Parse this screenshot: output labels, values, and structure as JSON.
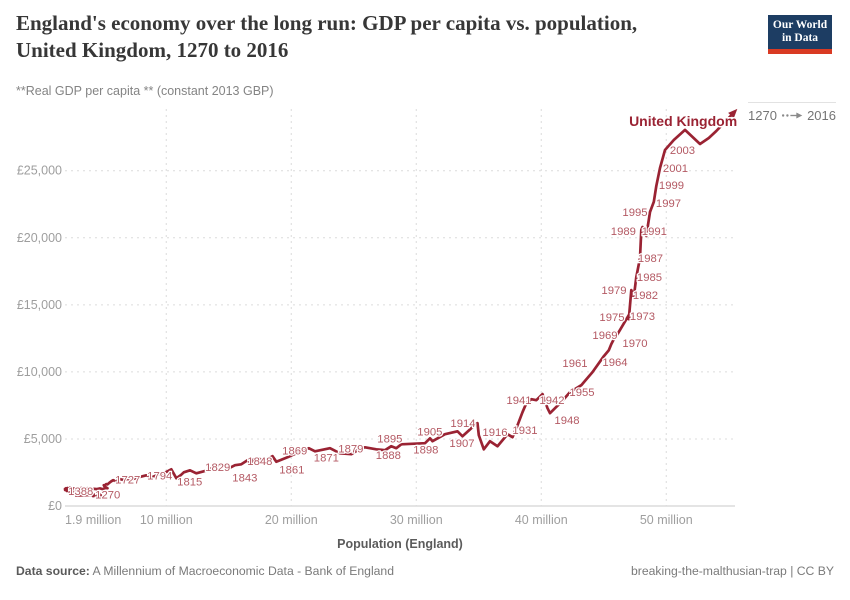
{
  "header": {
    "title_line1": "England's economy over the long run: GDP per capita vs. population,",
    "title_line2": "United Kingdom, 1270 to 2016",
    "subtitle": "**Real GDP per capita ** (constant 2013 GBP)",
    "logo": {
      "line1": "Our World",
      "line2": "in Data"
    }
  },
  "legend": {
    "start_year": "1270",
    "end_year": "2016"
  },
  "footer": {
    "datasource_label": "Data source:",
    "datasource_value": " A Millennium of Macroeconomic Data - Bank of England",
    "note_right": "breaking-the-malthusian-trap | CC BY"
  },
  "chart_data": {
    "type": "line",
    "subtype": "connected-scatter",
    "entity": "United Kingdom",
    "title": "England's economy over the long run: GDP per capita vs. population, United Kingdom, 1270 to 2016",
    "xlabel": "Population (England)",
    "ylabel": "**Real GDP per capita ** (constant 2013 GBP)",
    "x_domain": [
      1.9,
      55.5
    ],
    "y_domain": [
      0,
      29600
    ],
    "grid": true,
    "x_ticks": [
      {
        "v": 1.9,
        "label": "1.9 million",
        "gridline": false
      },
      {
        "v": 10,
        "label": "10 million",
        "gridline": true
      },
      {
        "v": 20,
        "label": "20 million",
        "gridline": true
      },
      {
        "v": 30,
        "label": "30 million",
        "gridline": true
      },
      {
        "v": 40,
        "label": "40 million",
        "gridline": true
      },
      {
        "v": 50,
        "label": "50 million",
        "gridline": true
      }
    ],
    "y_ticks": [
      {
        "v": 0,
        "label": "£0"
      },
      {
        "v": 5000,
        "label": "£5,000"
      },
      {
        "v": 10000,
        "label": "£10,000"
      },
      {
        "v": 15000,
        "label": "£15,000"
      },
      {
        "v": 20000,
        "label": "£20,000"
      },
      {
        "v": 25000,
        "label": "£25,000"
      }
    ],
    "colors": {
      "line": "#9a2333",
      "year_label": "#b45a64",
      "entity_label": "#9a2333",
      "gridline": "#dcdcdc",
      "axis_line": "#c9c9c9",
      "tick_label": "#9e9e9e"
    },
    "series_units": [
      "year",
      "population_millions",
      "gdp_per_capita_gbp"
    ],
    "series": [
      [
        1270,
        4.4,
        870
      ],
      [
        1280,
        4.55,
        790
      ],
      [
        1290,
        4.72,
        760
      ],
      [
        1300,
        4.78,
        720
      ],
      [
        1310,
        4.6,
        650
      ],
      [
        1316,
        4.45,
        600
      ],
      [
        1322,
        4.3,
        780
      ],
      [
        1327,
        4.15,
        740
      ],
      [
        1335,
        4.3,
        820
      ],
      [
        1342,
        4.55,
        800
      ],
      [
        1348,
        4.75,
        860
      ],
      [
        1352,
        2.78,
        780
      ],
      [
        1358,
        2.72,
        940
      ],
      [
        1363,
        2.65,
        880
      ],
      [
        1369,
        2.58,
        1000
      ],
      [
        1375,
        2.5,
        1080
      ],
      [
        1381,
        2.44,
        1010
      ],
      [
        1388,
        2.38,
        1130
      ],
      [
        1395,
        2.25,
        1080
      ],
      [
        1400,
        2.15,
        1180
      ],
      [
        1408,
        2.05,
        1120
      ],
      [
        1415,
        1.98,
        1200
      ],
      [
        1423,
        1.94,
        1260
      ],
      [
        1430,
        1.91,
        1190
      ],
      [
        1440,
        1.9,
        1280
      ],
      [
        1450,
        1.92,
        1230
      ],
      [
        1460,
        1.98,
        1320
      ],
      [
        1470,
        2.04,
        1260
      ],
      [
        1480,
        2.1,
        1340
      ],
      [
        1490,
        2.16,
        1290
      ],
      [
        1500,
        2.24,
        1330
      ],
      [
        1510,
        2.32,
        1380
      ],
      [
        1522,
        2.4,
        1270
      ],
      [
        1531,
        2.6,
        1320
      ],
      [
        1541,
        2.85,
        1150
      ],
      [
        1551,
        3.05,
        1280
      ],
      [
        1561,
        3.2,
        1340
      ],
      [
        1571,
        3.45,
        1280
      ],
      [
        1581,
        3.7,
        1330
      ],
      [
        1591,
        3.95,
        1200
      ],
      [
        1601,
        4.2,
        1280
      ],
      [
        1611,
        4.45,
        1260
      ],
      [
        1621,
        4.7,
        1310
      ],
      [
        1631,
        4.95,
        1250
      ],
      [
        1641,
        5.15,
        1360
      ],
      [
        1651,
        5.3,
        1320
      ],
      [
        1661,
        5.15,
        1410
      ],
      [
        1671,
        5.05,
        1470
      ],
      [
        1681,
        5.0,
        1550
      ],
      [
        1691,
        5.05,
        1520
      ],
      [
        1701,
        5.2,
        1630
      ],
      [
        1711,
        5.3,
        1610
      ],
      [
        1719,
        5.42,
        1710
      ],
      [
        1727,
        5.6,
        1840
      ],
      [
        1736,
        5.75,
        1920
      ],
      [
        1745,
        5.9,
        1870
      ],
      [
        1752,
        6.1,
        1940
      ],
      [
        1761,
        6.35,
        2000
      ],
      [
        1766,
        6.6,
        1930
      ],
      [
        1772,
        6.9,
        2010
      ],
      [
        1777,
        7.15,
        1950
      ],
      [
        1783,
        7.45,
        2040
      ],
      [
        1789,
        7.8,
        2150
      ],
      [
        1794,
        8.4,
        2290
      ],
      [
        1798,
        8.9,
        2160
      ],
      [
        1803,
        9.45,
        2370
      ],
      [
        1808,
        9.95,
        2510
      ],
      [
        1813,
        10.4,
        2740
      ],
      [
        1816,
        10.8,
        2070
      ],
      [
        1819,
        11.15,
        2290
      ],
      [
        1821,
        11.4,
        2510
      ],
      [
        1824,
        11.9,
        2660
      ],
      [
        1826,
        12.4,
        2440
      ],
      [
        1829,
        13.3,
        2660
      ],
      [
        1831,
        13.8,
        2890
      ],
      [
        1834,
        14.4,
        3110
      ],
      [
        1837,
        15.0,
        2810
      ],
      [
        1840,
        15.5,
        3040
      ],
      [
        1843,
        16.0,
        3110
      ],
      [
        1845,
        16.5,
        3410
      ],
      [
        1847,
        16.8,
        3190
      ],
      [
        1848,
        17.0,
        3490
      ],
      [
        1851,
        17.4,
        3560
      ],
      [
        1853,
        17.7,
        3340
      ],
      [
        1855,
        18.1,
        3490
      ],
      [
        1857,
        18.5,
        3710
      ],
      [
        1859,
        18.8,
        3300
      ],
      [
        1861,
        19.7,
        3630
      ],
      [
        1864,
        20.4,
        3930
      ],
      [
        1866,
        20.8,
        4080
      ],
      [
        1869,
        21.4,
        4310
      ],
      [
        1871,
        21.9,
        4080
      ],
      [
        1873,
        23.1,
        4310
      ],
      [
        1876,
        23.9,
        3930
      ],
      [
        1879,
        24.8,
        3860
      ],
      [
        1881,
        25.3,
        4160
      ],
      [
        1883,
        25.9,
        4380
      ],
      [
        1886,
        26.8,
        4230
      ],
      [
        1888,
        27.5,
        4160
      ],
      [
        1890,
        28.0,
        4460
      ],
      [
        1893,
        28.4,
        4310
      ],
      [
        1895,
        28.8,
        4600
      ],
      [
        1898,
        30.7,
        4680
      ],
      [
        1900,
        31.1,
        5050
      ],
      [
        1901,
        31.3,
        4830
      ],
      [
        1905,
        32.3,
        5350
      ],
      [
        1907,
        33.3,
        5570
      ],
      [
        1909,
        33.7,
        5200
      ],
      [
        1913,
        34.4,
        5800
      ],
      [
        1918,
        34.9,
        6170
      ],
      [
        1919,
        35.0,
        5280
      ],
      [
        1921,
        35.4,
        4230
      ],
      [
        1924,
        35.9,
        4830
      ],
      [
        1926,
        36.5,
        4460
      ],
      [
        1929,
        37.3,
        5350
      ],
      [
        1931,
        37.7,
        5130
      ],
      [
        1934,
        38.1,
        6020
      ],
      [
        1937,
        38.5,
        6990
      ],
      [
        1940,
        38.8,
        7660
      ],
      [
        1941,
        39.2,
        7960
      ],
      [
        1942,
        39.6,
        7890
      ],
      [
        1943,
        40.1,
        8340
      ],
      [
        1946,
        40.5,
        7290
      ],
      [
        1947,
        40.7,
        6920
      ],
      [
        1948,
        41.1,
        7290
      ],
      [
        1950,
        41.5,
        7660
      ],
      [
        1952,
        41.8,
        7960
      ],
      [
        1955,
        42.3,
        8490
      ],
      [
        1958,
        43.2,
        9010
      ],
      [
        1961,
        44.1,
        9980
      ],
      [
        1964,
        45.0,
        11170
      ],
      [
        1966,
        45.4,
        11620
      ],
      [
        1968,
        45.6,
        12070
      ],
      [
        1969,
        45.8,
        12440
      ],
      [
        1970,
        46.0,
        12660
      ],
      [
        1973,
        47.1,
        14380
      ],
      [
        1975,
        47.0,
        13930
      ],
      [
        1979,
        47.2,
        16100
      ],
      [
        1982,
        47.4,
        15580
      ],
      [
        1985,
        47.6,
        17070
      ],
      [
        1987,
        47.9,
        18490
      ],
      [
        1989,
        48.0,
        20580
      ],
      [
        1990,
        48.1,
        20800
      ],
      [
        1992,
        48.4,
        20130
      ],
      [
        1995,
        48.7,
        21920
      ],
      [
        1997,
        49.0,
        22670
      ],
      [
        1999,
        49.2,
        23860
      ],
      [
        2001,
        49.5,
        25200
      ],
      [
        2003,
        49.9,
        26540
      ],
      [
        2005,
        50.6,
        27290
      ],
      [
        2007,
        51.5,
        28040
      ],
      [
        2009,
        52.7,
        26990
      ],
      [
        2011,
        53.4,
        27440
      ],
      [
        2013,
        54.0,
        27960
      ],
      [
        2016,
        55.3,
        29230
      ]
    ],
    "year_labels": [
      {
        "year": "1388",
        "pop": 3.16,
        "gdp": 1100
      },
      {
        "year": "1270",
        "pop": 5.32,
        "gdp": 870
      },
      {
        "year": "1727",
        "pop": 6.92,
        "gdp": 1990
      },
      {
        "year": "1794",
        "pop": 9.48,
        "gdp": 2290
      },
      {
        "year": "1815",
        "pop": 11.88,
        "gdp": 1840
      },
      {
        "year": "1829",
        "pop": 14.12,
        "gdp": 2890
      },
      {
        "year": "1843",
        "pop": 16.29,
        "gdp": 2140
      },
      {
        "year": "1848",
        "pop": 17.49,
        "gdp": 3340
      },
      {
        "year": "1861",
        "pop": 20.05,
        "gdp": 2740
      },
      {
        "year": "1869",
        "pop": 20.28,
        "gdp": 4120
      },
      {
        "year": "1871",
        "pop": 22.81,
        "gdp": 3630
      },
      {
        "year": "1879",
        "pop": 24.77,
        "gdp": 4270
      },
      {
        "year": "1888",
        "pop": 27.77,
        "gdp": 3820
      },
      {
        "year": "1895",
        "pop": 27.89,
        "gdp": 5050
      },
      {
        "year": "1898",
        "pop": 30.77,
        "gdp": 4230
      },
      {
        "year": "1905",
        "pop": 31.09,
        "gdp": 5570
      },
      {
        "year": "1907",
        "pop": 33.66,
        "gdp": 4680
      },
      {
        "year": "1914",
        "pop": 33.74,
        "gdp": 6170
      },
      {
        "year": "1916",
        "pop": 36.3,
        "gdp": 5500
      },
      {
        "year": "1931",
        "pop": 38.7,
        "gdp": 5650
      },
      {
        "year": "1941",
        "pop": 38.22,
        "gdp": 7890
      },
      {
        "year": "1942",
        "pop": 40.86,
        "gdp": 7890
      },
      {
        "year": "1948",
        "pop": 42.06,
        "gdp": 6400
      },
      {
        "year": "1955",
        "pop": 43.26,
        "gdp": 8490
      },
      {
        "year": "1961",
        "pop": 42.7,
        "gdp": 10650
      },
      {
        "year": "1964",
        "pop": 45.9,
        "gdp": 10720
      },
      {
        "year": "1969",
        "pop": 45.1,
        "gdp": 12740
      },
      {
        "year": "1970",
        "pop": 47.5,
        "gdp": 12140
      },
      {
        "year": "1973",
        "pop": 48.1,
        "gdp": 14160
      },
      {
        "year": "1975",
        "pop": 45.66,
        "gdp": 14080
      },
      {
        "year": "1979",
        "pop": 45.82,
        "gdp": 16100
      },
      {
        "year": "1982",
        "pop": 48.34,
        "gdp": 15730
      },
      {
        "year": "1985",
        "pop": 48.66,
        "gdp": 17070
      },
      {
        "year": "1987",
        "pop": 48.74,
        "gdp": 18490
      },
      {
        "year": "1989",
        "pop": 46.57,
        "gdp": 20500
      },
      {
        "year": "1991",
        "pop": 49.05,
        "gdp": 20500
      },
      {
        "year": "1995",
        "pop": 47.5,
        "gdp": 21920
      },
      {
        "year": "1997",
        "pop": 50.18,
        "gdp": 22590
      },
      {
        "year": "1999",
        "pop": 50.42,
        "gdp": 23940
      },
      {
        "year": "2001",
        "pop": 50.74,
        "gdp": 25200
      },
      {
        "year": "2003",
        "pop": 51.3,
        "gdp": 26540
      }
    ],
    "entity_label": {
      "text": "United Kingdom",
      "pop": 51.35,
      "gdp": 28710
    },
    "legend_note": "1270 → 2016"
  }
}
